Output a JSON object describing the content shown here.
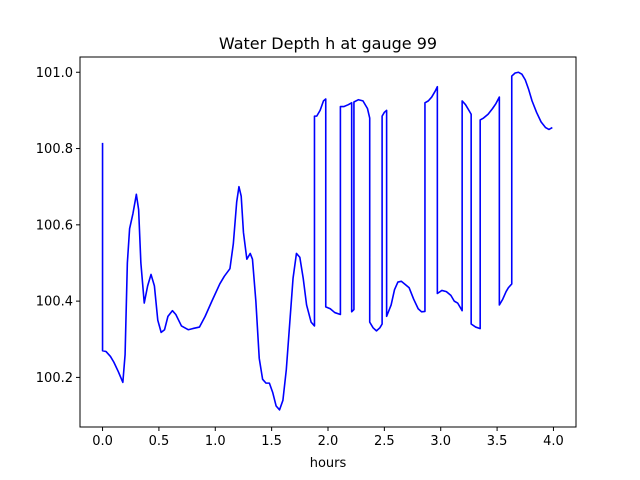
{
  "chart_data": {
    "type": "line",
    "title": "Water Depth h at gauge 99",
    "xlabel": "hours",
    "ylabel": "",
    "xlim": [
      -0.2,
      4.2
    ],
    "ylim": [
      100.07,
      101.04
    ],
    "xticks": [
      {
        "value": 0.0,
        "label": "0.0"
      },
      {
        "value": 0.5,
        "label": "0.5"
      },
      {
        "value": 1.0,
        "label": "1.0"
      },
      {
        "value": 1.5,
        "label": "1.5"
      },
      {
        "value": 2.0,
        "label": "2.0"
      },
      {
        "value": 2.5,
        "label": "2.5"
      },
      {
        "value": 3.0,
        "label": "3.0"
      },
      {
        "value": 3.5,
        "label": "3.5"
      },
      {
        "value": 4.0,
        "label": "4.0"
      }
    ],
    "yticks": [
      {
        "value": 100.2,
        "label": "100.2"
      },
      {
        "value": 100.4,
        "label": "100.4"
      },
      {
        "value": 100.6,
        "label": "100.6"
      },
      {
        "value": 100.8,
        "label": "100.8"
      },
      {
        "value": 101.0,
        "label": "101.0"
      }
    ],
    "grid": false,
    "series": [
      {
        "color": "#0000ff",
        "points": [
          [
            0.0,
            100.815
          ],
          [
            0.0,
            100.27
          ],
          [
            0.03,
            100.268
          ],
          [
            0.07,
            100.255
          ],
          [
            0.1,
            100.24
          ],
          [
            0.14,
            100.215
          ],
          [
            0.18,
            100.187
          ],
          [
            0.2,
            100.26
          ],
          [
            0.22,
            100.5
          ],
          [
            0.24,
            100.59
          ],
          [
            0.27,
            100.63
          ],
          [
            0.3,
            100.68
          ],
          [
            0.32,
            100.64
          ],
          [
            0.34,
            100.5
          ],
          [
            0.37,
            100.395
          ],
          [
            0.4,
            100.44
          ],
          [
            0.43,
            100.47
          ],
          [
            0.46,
            100.44
          ],
          [
            0.49,
            100.35
          ],
          [
            0.52,
            100.318
          ],
          [
            0.55,
            100.325
          ],
          [
            0.58,
            100.36
          ],
          [
            0.62,
            100.375
          ],
          [
            0.65,
            100.365
          ],
          [
            0.7,
            100.335
          ],
          [
            0.76,
            100.325
          ],
          [
            0.8,
            100.328
          ],
          [
            0.86,
            100.332
          ],
          [
            0.91,
            100.36
          ],
          [
            0.97,
            100.4
          ],
          [
            1.04,
            100.445
          ],
          [
            1.08,
            100.465
          ],
          [
            1.13,
            100.485
          ],
          [
            1.16,
            100.55
          ],
          [
            1.19,
            100.66
          ],
          [
            1.21,
            100.7
          ],
          [
            1.23,
            100.675
          ],
          [
            1.25,
            100.58
          ],
          [
            1.28,
            100.51
          ],
          [
            1.31,
            100.525
          ],
          [
            1.33,
            100.51
          ],
          [
            1.36,
            100.4
          ],
          [
            1.39,
            100.25
          ],
          [
            1.42,
            100.195
          ],
          [
            1.45,
            100.185
          ],
          [
            1.48,
            100.185
          ],
          [
            1.51,
            100.16
          ],
          [
            1.54,
            100.125
          ],
          [
            1.57,
            100.115
          ],
          [
            1.6,
            100.14
          ],
          [
            1.63,
            100.22
          ],
          [
            1.66,
            100.34
          ],
          [
            1.69,
            100.46
          ],
          [
            1.72,
            100.525
          ],
          [
            1.75,
            100.515
          ],
          [
            1.78,
            100.46
          ],
          [
            1.81,
            100.39
          ],
          [
            1.85,
            100.345
          ],
          [
            1.88,
            100.335
          ],
          [
            1.88,
            100.885
          ],
          [
            1.9,
            100.885
          ],
          [
            1.93,
            100.9
          ],
          [
            1.96,
            100.925
          ],
          [
            1.98,
            100.93
          ],
          [
            1.98,
            100.385
          ],
          [
            2.02,
            100.38
          ],
          [
            2.06,
            100.37
          ],
          [
            2.11,
            100.365
          ],
          [
            2.11,
            100.91
          ],
          [
            2.14,
            100.91
          ],
          [
            2.18,
            100.915
          ],
          [
            2.21,
            100.92
          ],
          [
            2.21,
            100.372
          ],
          [
            2.23,
            100.378
          ],
          [
            2.23,
            100.922
          ],
          [
            2.27,
            100.928
          ],
          [
            2.31,
            100.925
          ],
          [
            2.35,
            100.905
          ],
          [
            2.37,
            100.88
          ],
          [
            2.37,
            100.345
          ],
          [
            2.4,
            100.33
          ],
          [
            2.43,
            100.322
          ],
          [
            2.46,
            100.33
          ],
          [
            2.48,
            100.34
          ],
          [
            2.48,
            100.885
          ],
          [
            2.5,
            100.895
          ],
          [
            2.52,
            100.9
          ],
          [
            2.52,
            100.36
          ],
          [
            2.56,
            100.39
          ],
          [
            2.59,
            100.43
          ],
          [
            2.62,
            100.45
          ],
          [
            2.65,
            100.452
          ],
          [
            2.68,
            100.445
          ],
          [
            2.72,
            100.435
          ],
          [
            2.76,
            100.405
          ],
          [
            2.8,
            100.38
          ],
          [
            2.83,
            100.372
          ],
          [
            2.86,
            100.373
          ],
          [
            2.86,
            100.92
          ],
          [
            2.89,
            100.925
          ],
          [
            2.92,
            100.935
          ],
          [
            2.95,
            100.95
          ],
          [
            2.97,
            100.962
          ],
          [
            2.97,
            100.42
          ],
          [
            3.01,
            100.428
          ],
          [
            3.05,
            100.425
          ],
          [
            3.09,
            100.415
          ],
          [
            3.12,
            100.4
          ],
          [
            3.15,
            100.395
          ],
          [
            3.19,
            100.375
          ],
          [
            3.19,
            100.925
          ],
          [
            3.22,
            100.915
          ],
          [
            3.25,
            100.9
          ],
          [
            3.27,
            100.89
          ],
          [
            3.27,
            100.34
          ],
          [
            3.31,
            100.332
          ],
          [
            3.35,
            100.328
          ],
          [
            3.35,
            100.875
          ],
          [
            3.38,
            100.88
          ],
          [
            3.42,
            100.89
          ],
          [
            3.46,
            100.905
          ],
          [
            3.49,
            100.918
          ],
          [
            3.52,
            100.935
          ],
          [
            3.52,
            100.39
          ],
          [
            3.55,
            100.405
          ],
          [
            3.58,
            100.425
          ],
          [
            3.6,
            100.435
          ],
          [
            3.63,
            100.445
          ],
          [
            3.63,
            100.99
          ],
          [
            3.66,
            100.998
          ],
          [
            3.69,
            101.0
          ],
          [
            3.72,
            100.995
          ],
          [
            3.75,
            100.98
          ],
          [
            3.78,
            100.955
          ],
          [
            3.81,
            100.925
          ],
          [
            3.85,
            100.895
          ],
          [
            3.89,
            100.87
          ],
          [
            3.93,
            100.855
          ],
          [
            3.96,
            100.85
          ],
          [
            3.99,
            100.855
          ]
        ]
      }
    ]
  }
}
